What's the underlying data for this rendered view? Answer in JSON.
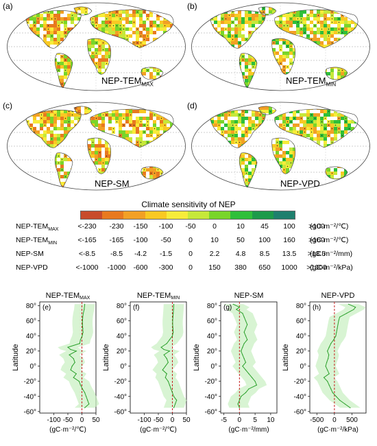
{
  "maps": [
    {
      "letter": "(a)",
      "label_main": "NEP-TEM",
      "label_sub": "MAX"
    },
    {
      "letter": "(b)",
      "label_main": "NEP-TEM",
      "label_sub": "MIN"
    },
    {
      "letter": "(c)",
      "label_main": "NEP-SM",
      "label_sub": ""
    },
    {
      "letter": "(d)",
      "label_main": "NEP-VPD",
      "label_sub": ""
    }
  ],
  "colorbar": {
    "title": "Climate sensitivity of NEP",
    "colors": [
      "#c84b2b",
      "#e8791f",
      "#f2a025",
      "#f9c923",
      "#f7ec3a",
      "#c6e83a",
      "#79d52a",
      "#2fbf3a",
      "#1c9a4a",
      "#1e7f6d"
    ]
  },
  "table_rows": [
    {
      "label_main": "NEP-TEM",
      "label_sub": "MAX",
      "ticks": [
        "<-230",
        "-230",
        "-150",
        "-100",
        "-50",
        "0",
        "10",
        "45",
        "100",
        ">100"
      ],
      "unit": "(gC·m⁻²/℃)"
    },
    {
      "label_main": "NEP-TEM",
      "label_sub": "MIN",
      "ticks": [
        "<-165",
        "-165",
        "-100",
        "-50",
        "0",
        "10",
        "50",
        "100",
        "160",
        ">160"
      ],
      "unit": "(gC·m⁻²/℃)"
    },
    {
      "label_main": "NEP-SM",
      "label_sub": "",
      "ticks": [
        "<-8.5",
        "-8.5",
        "-4.2",
        "-1.5",
        "0",
        "2.2",
        "4.8",
        "8.5",
        "13.5",
        ">13.5"
      ],
      "unit": "(gC·m⁻²/mm)"
    },
    {
      "label_main": "NEP-VPD",
      "label_sub": "",
      "ticks": [
        "<-1000",
        "-1000",
        "-600",
        "-300",
        "0",
        "150",
        "380",
        "650",
        "1000",
        ">1000"
      ],
      "unit": "(gC·m⁻²/kPa)"
    }
  ],
  "profiles": {
    "ylabel": "Latitude",
    "ytick_labels": [
      "80°",
      "60°",
      "40°",
      "20°",
      "0°",
      "-20°",
      "-40°",
      "-60°"
    ],
    "panels": [
      {
        "title_main": "NEP-TEM",
        "title_sub": "MAX",
        "letter": "(e)",
        "xtick_labels": [
          "-100",
          "-50",
          "0",
          "50"
        ],
        "unit": "(gC·m⁻²/℃)"
      },
      {
        "title_main": "NEP-TEM",
        "title_sub": "MIN",
        "letter": "(f)",
        "xtick_labels": [
          "-100",
          "-50",
          "0",
          "50"
        ],
        "unit": "(gC·m⁻²/℃)"
      },
      {
        "title_main": "NEP-SM",
        "title_sub": "",
        "letter": "(g)",
        "xtick_labels": [
          "-5",
          "0",
          "5",
          "10"
        ],
        "unit": "(gC·m⁻²/mm)"
      },
      {
        "title_main": "NEP-VPD",
        "title_sub": "",
        "letter": "(h)",
        "xtick_labels": [
          "-500",
          "0",
          "500"
        ],
        "unit": "(gC·m⁻²/kPa)"
      }
    ]
  },
  "chart_data": [
    {
      "type": "line",
      "title": "NEP-TEMMAX",
      "xlabel": "(gC·m⁻²/℃)",
      "ylabel": "Latitude",
      "xlim": [
        -150,
        50
      ],
      "ylim": [
        -62,
        85
      ],
      "series": [
        {
          "y": [
            82,
            75,
            70,
            65,
            60,
            55,
            50,
            45,
            40,
            35,
            30,
            25,
            22,
            20,
            15,
            10,
            5,
            0,
            -5,
            -10,
            -15,
            -20,
            -25,
            -30,
            -35,
            -40,
            -45,
            -50,
            -55
          ],
          "x": [
            10,
            8,
            5,
            3,
            2,
            2,
            3,
            4,
            1,
            -5,
            -8,
            -50,
            -40,
            -20,
            -45,
            -30,
            -25,
            -35,
            -40,
            -20,
            -30,
            -10,
            -5,
            2,
            10,
            15,
            20,
            25,
            10
          ]
        }
      ]
    },
    {
      "type": "line",
      "title": "NEP-TEMMIN",
      "xlabel": "(gC·m⁻²/℃)",
      "ylabel": "Latitude",
      "xlim": [
        -150,
        50
      ],
      "ylim": [
        -62,
        85
      ],
      "series": [
        {
          "y": [
            82,
            75,
            70,
            65,
            60,
            55,
            50,
            45,
            40,
            35,
            30,
            25,
            22,
            20,
            15,
            10,
            5,
            0,
            -5,
            -10,
            -15,
            -20,
            -25,
            -30,
            -35,
            -40,
            -45,
            -50,
            -55
          ],
          "x": [
            5,
            4,
            3,
            2,
            1,
            1,
            2,
            3,
            0,
            -10,
            -20,
            -40,
            -30,
            -10,
            -30,
            -20,
            -15,
            -25,
            -35,
            -20,
            -25,
            -15,
            -10,
            -5,
            0,
            5,
            15,
            10,
            5
          ]
        }
      ]
    },
    {
      "type": "line",
      "title": "NEP-SM",
      "xlabel": "(gC·m⁻²/mm)",
      "ylabel": "Latitude",
      "xlim": [
        -6,
        12
      ],
      "ylim": [
        -62,
        85
      ],
      "series": [
        {
          "y": [
            82,
            78,
            75,
            70,
            65,
            60,
            55,
            50,
            45,
            40,
            35,
            30,
            25,
            20,
            15,
            10,
            5,
            0,
            -5,
            -10,
            -15,
            -20,
            -25,
            -30,
            -35,
            -40,
            -45,
            -50,
            -55
          ],
          "x": [
            -2,
            0,
            -1,
            1,
            1.5,
            2,
            2.5,
            2,
            1.5,
            2,
            2.5,
            1.5,
            1,
            0.5,
            1,
            1.5,
            2,
            1,
            2,
            3,
            4,
            5,
            5.5,
            3,
            2,
            0.5,
            0,
            -0.5,
            0
          ]
        }
      ]
    },
    {
      "type": "line",
      "title": "NEP-VPD",
      "xlabel": "(gC·m⁻²/kPa)",
      "ylabel": "Latitude",
      "xlim": [
        -700,
        900
      ],
      "ylim": [
        -62,
        85
      ],
      "series": [
        {
          "y": [
            82,
            78,
            75,
            70,
            65,
            60,
            55,
            50,
            45,
            40,
            35,
            30,
            25,
            20,
            15,
            10,
            5,
            0,
            -5,
            -10,
            -15,
            -20,
            -25,
            -30,
            -35,
            -40,
            -45,
            -50,
            -55
          ],
          "x": [
            400,
            600,
            550,
            350,
            150,
            120,
            100,
            80,
            60,
            40,
            -20,
            -100,
            -150,
            -200,
            -160,
            -180,
            -220,
            -250,
            -200,
            -150,
            -300,
            -200,
            -150,
            -100,
            -50,
            50,
            150,
            300,
            450
          ]
        }
      ]
    }
  ]
}
